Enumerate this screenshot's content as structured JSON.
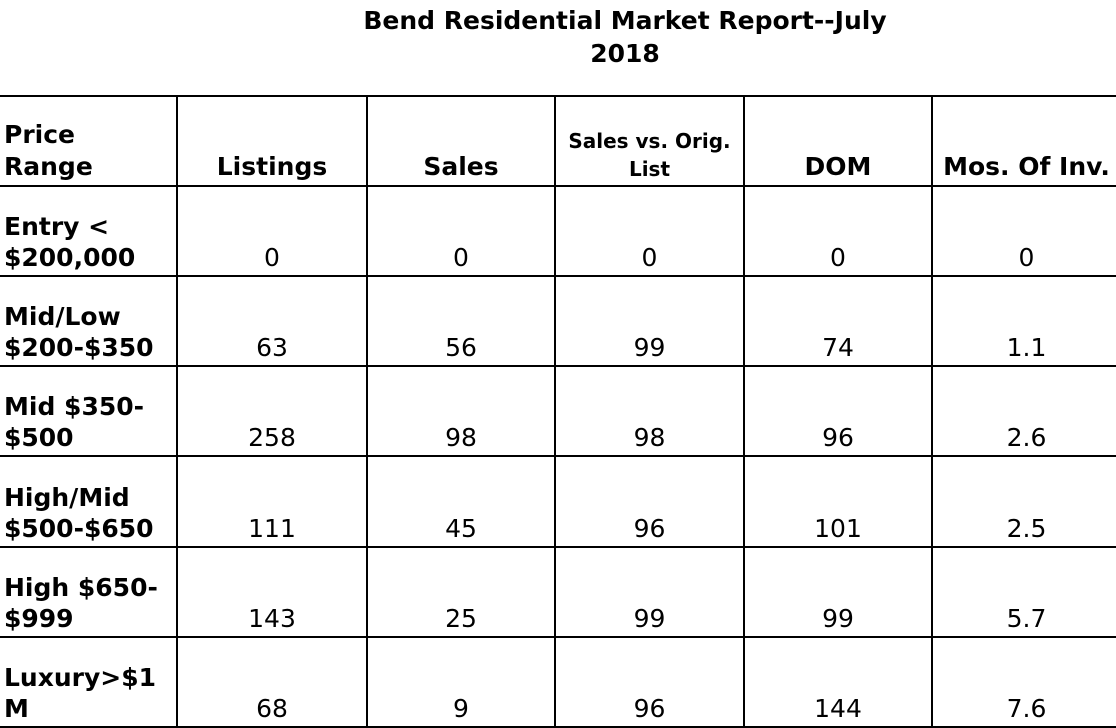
{
  "report": {
    "title_line1": "Bend Residential Market Report--July",
    "title_line2": "2018"
  },
  "table": {
    "headers": {
      "price_range": "Price Range",
      "listings": "Listings",
      "sales": "Sales",
      "sales_vs_orig_line1": "Sales vs. Orig.",
      "sales_vs_orig_line2": "List",
      "dom": "DOM",
      "mos_of_inv": "Mos. Of Inv."
    },
    "rows": [
      {
        "label_line1": "Entry <",
        "label_line2": "$200,000",
        "listings": "0",
        "sales": "0",
        "sales_vs_orig": "0",
        "dom": "0",
        "mos_of_inv": "0"
      },
      {
        "label_line1": "Mid/Low",
        "label_line2": "$200-$350",
        "listings": "63",
        "sales": "56",
        "sales_vs_orig": "99",
        "dom": "74",
        "mos_of_inv": "1.1"
      },
      {
        "label_line1": "Mid $350-",
        "label_line2": "$500",
        "listings": "258",
        "sales": "98",
        "sales_vs_orig": "98",
        "dom": "96",
        "mos_of_inv": "2.6"
      },
      {
        "label_line1": "High/Mid",
        "label_line2": "$500-$650",
        "listings": "111",
        "sales": "45",
        "sales_vs_orig": "96",
        "dom": "101",
        "mos_of_inv": "2.5"
      },
      {
        "label_line1": "High $650-",
        "label_line2": "$999",
        "listings": "143",
        "sales": "25",
        "sales_vs_orig": "99",
        "dom": "99",
        "mos_of_inv": "5.7"
      },
      {
        "label_line1": "Luxury>$1",
        "label_line2": "M",
        "listings": "68",
        "sales": "9",
        "sales_vs_orig": "96",
        "dom": "144",
        "mos_of_inv": "7.6"
      }
    ]
  }
}
